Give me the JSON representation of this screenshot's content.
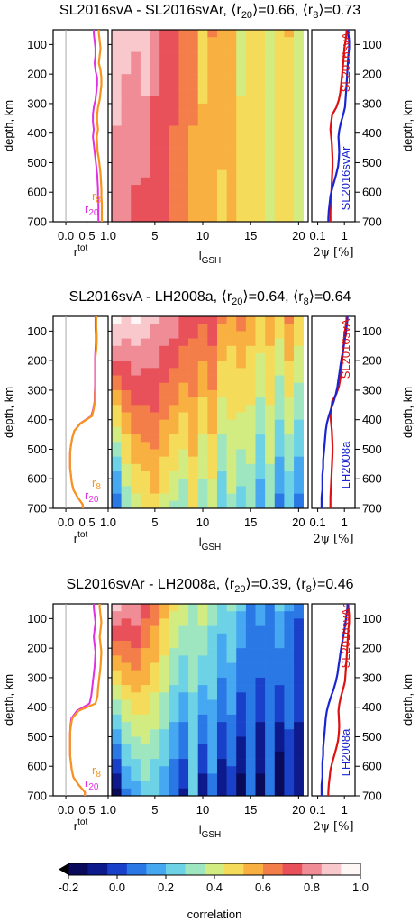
{
  "panels": [
    {
      "title": "SL2016svA - SL2016svAr, ⟨r20⟩=0.66, ⟨r8⟩=0.73",
      "title_parts": [
        "SL2016svA - SL2016svAr, ⟨r",
        "20",
        "⟩=0.66, ⟨r",
        "8",
        "⟩=0.73"
      ],
      "model_a": "SL2016svA",
      "model_b": "SL2016svAr"
    },
    {
      "title": "SL2016svA - LH2008a, ⟨r20⟩=0.64, ⟨r8⟩=0.64",
      "title_parts": [
        "SL2016svA - LH2008a, ⟨r",
        "20",
        "⟩=0.64, ⟨r",
        "8",
        "⟩=0.64"
      ],
      "model_a": "SL2016svA",
      "model_b": "LH2008a"
    },
    {
      "title": "SL2016svAr - LH2008a, ⟨r20⟩=0.39, ⟨r8⟩=0.46",
      "title_parts": [
        "SL2016svAr - LH2008a, ⟨r",
        "20",
        "⟩=0.39, ⟨r",
        "8",
        "⟩=0.46"
      ],
      "model_a": "SL2016svAr",
      "model_b": "LH2008a"
    }
  ],
  "axes": {
    "depth_label": "depth, km",
    "depth_ticks": [
      "100",
      "200",
      "300",
      "400",
      "500",
      "600",
      "700"
    ],
    "rtot_label": "r",
    "rtot_label_sup": "tot",
    "rtot_ticks": [
      "0.0",
      "0.5",
      "1.0"
    ],
    "lgsh_label": "l",
    "lgsh_label_sub": "GSH",
    "lgsh_ticks": [
      "5",
      "10",
      "15",
      "20"
    ],
    "psi_label": "2ψ [%]",
    "psi_ticks": [
      "0.1",
      "1"
    ],
    "legend_r8": "r",
    "legend_r8_sub": "8",
    "legend_r20": "r",
    "legend_r20_sub": "20"
  },
  "colorbar": {
    "label": "correlation",
    "ticks": [
      "-0.2",
      "0.0",
      "0.2",
      "0.4",
      "0.6",
      "0.8",
      "1.0"
    ],
    "range": [
      -0.2,
      1.0
    ],
    "colors": [
      "#0a0a5a",
      "#0c1a8c",
      "#1840c8",
      "#2a78e6",
      "#46a8f0",
      "#6ed2e6",
      "#9ee6c0",
      "#d2ec82",
      "#f4dc5a",
      "#f8b040",
      "#f47e4a",
      "#e8505a",
      "#f08c96",
      "#f8c8cc",
      "#fff6f6"
    ]
  },
  "colors": {
    "r8": "#f7941d",
    "r20": "#e030e0",
    "model_a_line": "#dd1111",
    "model_b_line": "#1a24d0"
  },
  "chart_data": [
    {
      "type": "heatmap",
      "title": "SL2016svA - SL2016svAr, ⟨r20⟩=0.66, ⟨r8⟩=0.73",
      "xlabel": "lGSH",
      "ylabel": "depth, km",
      "x_range": [
        1,
        20
      ],
      "depth_range": [
        50,
        700
      ],
      "color_range": [
        -0.2,
        1.0
      ],
      "depth_levels": [
        62.5,
        87.5,
        112.5,
        137.5,
        162.5,
        187.5,
        212.5,
        237.5,
        262.5,
        287.5,
        312.5,
        337.5,
        362.5,
        387.5,
        412.5,
        437.5,
        462.5,
        487.5,
        512.5,
        537.5,
        562.5,
        587.5,
        612.5,
        637.5,
        662.5,
        687.5
      ],
      "z_top": [
        0.88,
        0.86,
        0.85,
        0.9,
        0.78,
        0.75,
        0.7,
        0.6,
        0.62,
        0.5,
        0.6,
        0.58,
        0.55,
        0.42,
        0.45,
        0.5,
        0.4,
        0.48,
        0.52,
        0.38
      ],
      "z_bottom": [
        0.8,
        0.76,
        0.74,
        0.72,
        0.72,
        0.7,
        0.66,
        0.6,
        0.58,
        0.55,
        0.56,
        0.5,
        0.52,
        0.48,
        0.5,
        0.45,
        0.42,
        0.46,
        0.44,
        0.4
      ],
      "rtot_r8": [
        0.78,
        0.8,
        0.82,
        0.8,
        0.78,
        0.82,
        0.84,
        0.84,
        0.82,
        0.8,
        0.76,
        0.74,
        0.74,
        0.76,
        0.73,
        0.74,
        0.75,
        0.78,
        0.8,
        0.82,
        0.83,
        0.84,
        0.84,
        0.85,
        0.85,
        0.85
      ],
      "rtot_r20": [
        0.66,
        0.68,
        0.7,
        0.7,
        0.68,
        0.7,
        0.74,
        0.74,
        0.72,
        0.7,
        0.66,
        0.64,
        0.64,
        0.66,
        0.64,
        0.66,
        0.68,
        0.7,
        0.72,
        0.74,
        0.75,
        0.76,
        0.76,
        0.77,
        0.77,
        0.77
      ],
      "psi_a": [
        1.2,
        1.1,
        1.0,
        0.95,
        0.9,
        0.85,
        0.8,
        0.75,
        0.7,
        0.62,
        0.5,
        0.35,
        0.32,
        0.3,
        0.32,
        0.34,
        0.35,
        0.36,
        0.36,
        0.35,
        0.34,
        0.33,
        0.32,
        0.31,
        0.3,
        0.3
      ],
      "psi_b": [
        1.4,
        1.5,
        1.5,
        1.4,
        1.35,
        1.3,
        1.25,
        1.2,
        1.15,
        1.1,
        1.05,
        0.9,
        0.75,
        0.65,
        0.6,
        0.62,
        0.64,
        0.62,
        0.58,
        0.5,
        0.42,
        0.35,
        0.3,
        0.28,
        0.26,
        0.25
      ]
    },
    {
      "type": "heatmap",
      "title": "SL2016svA - LH2008a, ⟨r20⟩=0.64, ⟨r8⟩=0.64",
      "xlabel": "lGSH",
      "ylabel": "depth, km",
      "x_range": [
        1,
        20
      ],
      "depth_range": [
        50,
        700
      ],
      "color_range": [
        -0.2,
        1.0
      ],
      "depth_levels": [
        62.5,
        87.5,
        112.5,
        137.5,
        162.5,
        187.5,
        212.5,
        237.5,
        262.5,
        287.5,
        312.5,
        337.5,
        362.5,
        387.5,
        412.5,
        437.5,
        462.5,
        487.5,
        512.5,
        537.5,
        562.5,
        587.5,
        612.5,
        637.5,
        662.5,
        687.5
      ],
      "z_top": [
        0.95,
        0.9,
        0.92,
        0.88,
        0.85,
        0.82,
        0.8,
        0.75,
        0.7,
        0.68,
        0.72,
        0.6,
        0.55,
        0.62,
        0.55,
        0.5,
        0.55,
        0.48,
        0.6,
        0.5
      ],
      "z_bottom": [
        0.05,
        0.3,
        0.4,
        0.45,
        0.5,
        0.42,
        0.35,
        0.3,
        0.45,
        0.3,
        0.4,
        0.2,
        0.35,
        0.25,
        0.3,
        0.15,
        0.3,
        0.1,
        0.2,
        0.1
      ],
      "rtot_r8": [
        0.72,
        0.72,
        0.73,
        0.73,
        0.72,
        0.7,
        0.7,
        0.7,
        0.7,
        0.7,
        0.69,
        0.69,
        0.66,
        0.62,
        0.35,
        0.2,
        0.15,
        0.12,
        0.1,
        0.1,
        0.1,
        0.12,
        0.14,
        0.18,
        0.28,
        0.4
      ],
      "rtot_r20": [
        0.7,
        0.7,
        0.71,
        0.71,
        0.7,
        0.69,
        0.69,
        0.69,
        0.69,
        0.69,
        0.68,
        0.68,
        0.65,
        0.6,
        0.34,
        0.2,
        0.15,
        0.12,
        0.1,
        0.1,
        0.1,
        0.12,
        0.14,
        0.18,
        0.28,
        0.4
      ],
      "psi_a": [
        1.2,
        1.1,
        1.0,
        0.95,
        0.9,
        0.85,
        0.8,
        0.75,
        0.7,
        0.62,
        0.5,
        0.35,
        0.32,
        0.3,
        0.32,
        0.34,
        0.35,
        0.36,
        0.36,
        0.35,
        0.34,
        0.33,
        0.32,
        0.31,
        0.3,
        0.3
      ],
      "psi_b": [
        1.3,
        1.2,
        1.1,
        1.0,
        0.9,
        0.8,
        0.72,
        0.66,
        0.6,
        0.55,
        0.48,
        0.4,
        0.32,
        0.26,
        0.22,
        0.2,
        0.19,
        0.18,
        0.17,
        0.16,
        0.16,
        0.15,
        0.15,
        0.15,
        0.14,
        0.14
      ]
    },
    {
      "type": "heatmap",
      "title": "SL2016svAr - LH2008a, ⟨r20⟩=0.39, ⟨r8⟩=0.46",
      "xlabel": "lGSH",
      "ylabel": "depth, km",
      "x_range": [
        1,
        20
      ],
      "depth_range": [
        50,
        700
      ],
      "color_range": [
        -0.2,
        1.0
      ],
      "depth_levels": [
        62.5,
        87.5,
        112.5,
        137.5,
        162.5,
        187.5,
        212.5,
        237.5,
        262.5,
        287.5,
        312.5,
        337.5,
        362.5,
        387.5,
        412.5,
        437.5,
        462.5,
        487.5,
        512.5,
        537.5,
        562.5,
        587.5,
        612.5,
        637.5,
        662.5,
        687.5
      ],
      "z_top": [
        0.85,
        0.8,
        0.82,
        0.7,
        0.65,
        0.55,
        0.45,
        0.4,
        0.35,
        0.42,
        0.3,
        0.25,
        0.28,
        0.2,
        0.05,
        0.15,
        0.1,
        0.2,
        0.12,
        0.05
      ],
      "z_bottom": [
        -0.15,
        0.1,
        0.15,
        0.25,
        0.2,
        0.15,
        0.05,
        -0.05,
        0.2,
        -0.1,
        0.1,
        -0.1,
        0.0,
        -0.15,
        0.05,
        -0.15,
        0.05,
        -0.2,
        0.0,
        -0.1
      ],
      "rtot_r8": [
        0.8,
        0.82,
        0.84,
        0.82,
        0.8,
        0.82,
        0.84,
        0.83,
        0.82,
        0.8,
        0.78,
        0.76,
        0.75,
        0.7,
        0.3,
        0.15,
        0.12,
        0.1,
        0.1,
        0.1,
        0.1,
        0.12,
        0.14,
        0.18,
        0.3,
        0.45
      ],
      "rtot_r20": [
        0.66,
        0.68,
        0.7,
        0.68,
        0.66,
        0.68,
        0.7,
        0.69,
        0.68,
        0.66,
        0.64,
        0.62,
        0.6,
        0.56,
        0.26,
        0.13,
        0.11,
        0.1,
        0.1,
        0.1,
        0.1,
        0.12,
        0.14,
        0.18,
        0.3,
        0.45
      ],
      "psi_a": [
        1.4,
        1.5,
        1.5,
        1.4,
        1.35,
        1.3,
        1.25,
        1.2,
        1.15,
        1.1,
        1.05,
        0.9,
        0.75,
        0.65,
        0.6,
        0.62,
        0.64,
        0.62,
        0.58,
        0.5,
        0.42,
        0.35,
        0.3,
        0.28,
        0.26,
        0.25
      ],
      "psi_b": [
        1.3,
        1.2,
        1.1,
        1.0,
        0.9,
        0.8,
        0.72,
        0.66,
        0.6,
        0.55,
        0.48,
        0.4,
        0.32,
        0.26,
        0.22,
        0.2,
        0.19,
        0.18,
        0.17,
        0.16,
        0.16,
        0.15,
        0.15,
        0.15,
        0.14,
        0.14
      ]
    }
  ]
}
